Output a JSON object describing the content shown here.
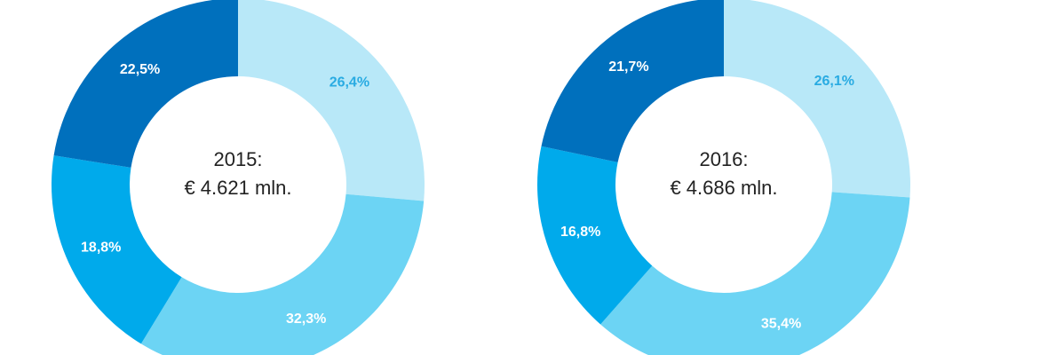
{
  "chart_data": [
    {
      "type": "pie",
      "title": "2015:",
      "subtitle": "€ 4.621 mln.",
      "values": [
        26.4,
        32.3,
        18.8,
        22.5
      ],
      "value_labels": [
        "26,4%",
        "32,3%",
        "18,8%",
        "22,5%"
      ],
      "colors": [
        "#b8e8f8",
        "#6cd4f4",
        "#00aaeb",
        "#0070bd"
      ]
    },
    {
      "type": "pie",
      "title": "2016:",
      "subtitle": "€ 4.686 mln.",
      "values": [
        26.1,
        35.4,
        16.8,
        21.7
      ],
      "value_labels": [
        "26,1%",
        "35,4%",
        "16,8%",
        "21,7%"
      ],
      "colors": [
        "#b8e8f8",
        "#6cd4f4",
        "#00aaeb",
        "#0070bd"
      ]
    }
  ]
}
